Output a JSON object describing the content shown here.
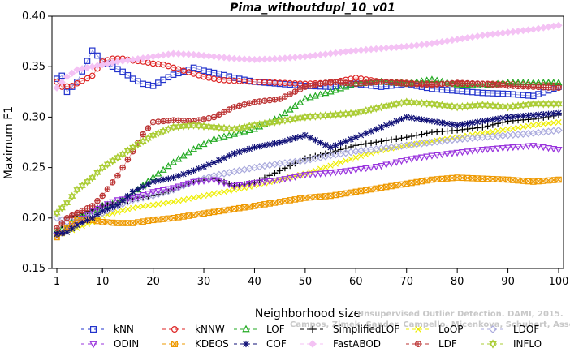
{
  "chart_data": {
    "type": "line",
    "title": "Pima_withoutdupl_10_v01",
    "xlabel": "Neighborhood size",
    "ylabel": "Maximum F1",
    "xlim": [
      1,
      100
    ],
    "ylim": [
      0.15,
      0.4
    ],
    "xticks": [
      1,
      10,
      20,
      30,
      40,
      50,
      60,
      70,
      80,
      90,
      100
    ],
    "yticks": [
      0.15,
      0.2,
      0.25,
      0.3,
      0.35,
      0.4
    ],
    "xtick_labels": [
      "1",
      "10",
      "20",
      "30",
      "40",
      "50",
      "60",
      "70",
      "80",
      "90",
      "100"
    ],
    "ytick_labels": [
      "0.15",
      "0.20",
      "0.25",
      "0.30",
      "0.35",
      "0.40"
    ],
    "grid": false,
    "legend_position": "bottom",
    "watermark": {
      "line1": "Unsupervised Outlier Detection. DAMI, 2015.",
      "line2": "Campos, Zimek, Sander, Campello, Micenkova, Schubert, Assent, Houle"
    },
    "series": [
      {
        "name": "kNN",
        "color": "#2233cc",
        "marker": "square",
        "x": [
          1,
          2,
          3,
          5,
          8,
          10,
          12,
          14,
          16,
          18,
          20,
          22,
          24,
          26,
          28,
          30,
          33,
          36,
          40,
          45,
          50,
          55,
          60,
          65,
          70,
          75,
          80,
          85,
          90,
          95,
          100
        ],
        "y": [
          0.338,
          0.341,
          0.325,
          0.335,
          0.366,
          0.356,
          0.35,
          0.345,
          0.338,
          0.333,
          0.331,
          0.337,
          0.342,
          0.345,
          0.349,
          0.346,
          0.343,
          0.339,
          0.335,
          0.333,
          0.331,
          0.33,
          0.333,
          0.33,
          0.333,
          0.328,
          0.326,
          0.324,
          0.323,
          0.321,
          0.33
        ]
      },
      {
        "name": "kNNW",
        "color": "#dd2222",
        "marker": "circle",
        "x": [
          1,
          2,
          4,
          6,
          8,
          10,
          12,
          14,
          16,
          18,
          20,
          22,
          24,
          26,
          28,
          30,
          33,
          36,
          40,
          45,
          50,
          55,
          60,
          65,
          70,
          75,
          80,
          85,
          90,
          95,
          100
        ],
        "y": [
          0.335,
          0.33,
          0.331,
          0.336,
          0.341,
          0.355,
          0.358,
          0.358,
          0.356,
          0.355,
          0.353,
          0.352,
          0.349,
          0.346,
          0.343,
          0.34,
          0.337,
          0.336,
          0.335,
          0.334,
          0.333,
          0.334,
          0.339,
          0.335,
          0.334,
          0.333,
          0.333,
          0.333,
          0.333,
          0.332,
          0.331
        ]
      },
      {
        "name": "LOF",
        "color": "#22aa22",
        "marker": "triangle-up",
        "x": [
          1,
          3,
          5,
          8,
          10,
          13,
          16,
          20,
          24,
          28,
          32,
          36,
          40,
          45,
          50,
          55,
          60,
          65,
          70,
          75,
          80,
          85,
          90,
          95,
          100
        ],
        "y": [
          0.187,
          0.19,
          0.2,
          0.206,
          0.212,
          0.215,
          0.224,
          0.24,
          0.255,
          0.268,
          0.278,
          0.283,
          0.288,
          0.3,
          0.318,
          0.325,
          0.333,
          0.335,
          0.333,
          0.337,
          0.332,
          0.331,
          0.334,
          0.334,
          0.334
        ]
      },
      {
        "name": "SimplifiedLOF",
        "color": "#000000",
        "marker": "plus",
        "x": [
          1,
          3,
          5,
          8,
          10,
          13,
          16,
          20,
          24,
          28,
          32,
          36,
          40,
          45,
          50,
          55,
          60,
          65,
          70,
          75,
          80,
          85,
          90,
          95,
          100
        ],
        "y": [
          0.186,
          0.2,
          0.203,
          0.208,
          0.212,
          0.214,
          0.219,
          0.222,
          0.228,
          0.236,
          0.239,
          0.232,
          0.235,
          0.247,
          0.259,
          0.265,
          0.272,
          0.276,
          0.28,
          0.285,
          0.287,
          0.29,
          0.296,
          0.298,
          0.302
        ]
      },
      {
        "name": "LoOP",
        "color": "#eeee00",
        "marker": "x",
        "x": [
          1,
          3,
          5,
          8,
          10,
          13,
          16,
          20,
          24,
          28,
          32,
          36,
          40,
          45,
          50,
          55,
          60,
          65,
          70,
          75,
          80,
          85,
          90,
          95,
          100
        ],
        "y": [
          0.183,
          0.186,
          0.19,
          0.196,
          0.202,
          0.206,
          0.21,
          0.213,
          0.216,
          0.22,
          0.224,
          0.228,
          0.232,
          0.238,
          0.244,
          0.252,
          0.26,
          0.267,
          0.272,
          0.276,
          0.28,
          0.284,
          0.288,
          0.292,
          0.295
        ]
      },
      {
        "name": "LDOF",
        "color": "#aaaadd",
        "marker": "diamond",
        "x": [
          1,
          3,
          5,
          8,
          10,
          13,
          16,
          20,
          24,
          28,
          32,
          36,
          40,
          45,
          50,
          55,
          60,
          65,
          70,
          75,
          80,
          85,
          90,
          95,
          100
        ],
        "y": [
          0.2,
          0.196,
          0.197,
          0.202,
          0.205,
          0.212,
          0.218,
          0.222,
          0.228,
          0.236,
          0.242,
          0.246,
          0.25,
          0.254,
          0.257,
          0.262,
          0.266,
          0.269,
          0.272,
          0.275,
          0.278,
          0.28,
          0.282,
          0.284,
          0.287
        ]
      },
      {
        "name": "ODIN",
        "color": "#9933dd",
        "marker": "triangle-down",
        "x": [
          1,
          3,
          5,
          8,
          10,
          13,
          16,
          20,
          24,
          28,
          32,
          36,
          40,
          45,
          50,
          55,
          60,
          65,
          70,
          75,
          80,
          85,
          90,
          95,
          100
        ],
        "y": [
          0.183,
          0.189,
          0.196,
          0.207,
          0.212,
          0.218,
          0.22,
          0.226,
          0.23,
          0.236,
          0.238,
          0.232,
          0.235,
          0.238,
          0.243,
          0.245,
          0.248,
          0.252,
          0.258,
          0.262,
          0.265,
          0.268,
          0.27,
          0.272,
          0.268
        ]
      },
      {
        "name": "KDEOS",
        "color": "#ee9900",
        "marker": "square-x",
        "x": [
          1,
          3,
          5,
          8,
          10,
          13,
          16,
          20,
          24,
          28,
          32,
          36,
          40,
          45,
          50,
          55,
          60,
          65,
          70,
          75,
          80,
          85,
          90,
          95,
          100
        ],
        "y": [
          0.181,
          0.19,
          0.198,
          0.198,
          0.196,
          0.195,
          0.195,
          0.198,
          0.2,
          0.203,
          0.206,
          0.209,
          0.212,
          0.216,
          0.22,
          0.222,
          0.226,
          0.23,
          0.234,
          0.238,
          0.24,
          0.239,
          0.238,
          0.236,
          0.238
        ]
      },
      {
        "name": "COF",
        "color": "#111177",
        "marker": "asterisk",
        "x": [
          1,
          3,
          5,
          8,
          10,
          13,
          16,
          20,
          24,
          28,
          32,
          36,
          40,
          45,
          50,
          55,
          60,
          65,
          70,
          75,
          80,
          85,
          90,
          95,
          100
        ],
        "y": [
          0.184,
          0.186,
          0.193,
          0.2,
          0.207,
          0.213,
          0.226,
          0.236,
          0.24,
          0.247,
          0.255,
          0.264,
          0.27,
          0.275,
          0.282,
          0.27,
          0.28,
          0.29,
          0.3,
          0.296,
          0.292,
          0.296,
          0.3,
          0.302,
          0.304
        ]
      },
      {
        "name": "FastABOD",
        "color": "#f4c2f4",
        "marker": "diamond-filled",
        "x": [
          1,
          3,
          5,
          8,
          10,
          13,
          16,
          20,
          24,
          28,
          32,
          36,
          40,
          45,
          50,
          55,
          60,
          65,
          70,
          75,
          80,
          85,
          90,
          95,
          100
        ],
        "y": [
          0.329,
          0.34,
          0.347,
          0.35,
          0.352,
          0.355,
          0.357,
          0.36,
          0.363,
          0.362,
          0.36,
          0.358,
          0.357,
          0.358,
          0.36,
          0.363,
          0.366,
          0.368,
          0.37,
          0.373,
          0.377,
          0.381,
          0.384,
          0.387,
          0.391
        ]
      },
      {
        "name": "LDF",
        "color": "#bb3333",
        "marker": "circle-plus",
        "x": [
          1,
          3,
          5,
          8,
          10,
          13,
          16,
          18,
          20,
          24,
          28,
          32,
          36,
          40,
          45,
          50,
          55,
          60,
          65,
          70,
          75,
          80,
          85,
          90,
          95,
          100
        ],
        "y": [
          0.19,
          0.2,
          0.205,
          0.212,
          0.222,
          0.242,
          0.266,
          0.283,
          0.295,
          0.297,
          0.296,
          0.3,
          0.31,
          0.315,
          0.318,
          0.33,
          0.335,
          0.333,
          0.335,
          0.333,
          0.332,
          0.334,
          0.333,
          0.331,
          0.33,
          0.329
        ]
      },
      {
        "name": "INFLO",
        "color": "#aacc33",
        "marker": "star",
        "x": [
          1,
          3,
          5,
          8,
          10,
          13,
          16,
          20,
          24,
          28,
          32,
          36,
          40,
          45,
          50,
          55,
          60,
          65,
          70,
          75,
          80,
          85,
          90,
          95,
          100
        ],
        "y": [
          0.205,
          0.215,
          0.228,
          0.24,
          0.25,
          0.26,
          0.27,
          0.282,
          0.29,
          0.292,
          0.29,
          0.288,
          0.292,
          0.296,
          0.3,
          0.302,
          0.304,
          0.31,
          0.315,
          0.313,
          0.31,
          0.312,
          0.31,
          0.313,
          0.313
        ]
      }
    ]
  }
}
